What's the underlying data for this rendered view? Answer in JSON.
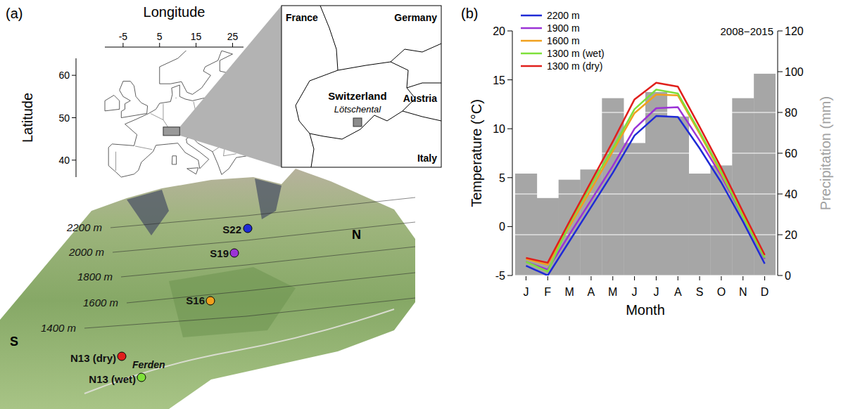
{
  "map": {
    "panel_label": "(a)",
    "x_label": "Longitude",
    "xlim": [
      -10,
      28
    ],
    "xticks": [
      -5,
      5,
      15,
      25
    ],
    "y_label": "Latitude",
    "ylim": [
      36,
      64
    ],
    "yticks": [
      40,
      50,
      60
    ],
    "countries": [
      "France",
      "Germany",
      "Switzerland",
      "Austria",
      "Italy"
    ],
    "valley": "Lötschental",
    "elevations": [
      "2200 m",
      "2000 m",
      "1800 m",
      "1600 m",
      "1400 m"
    ],
    "sites": [
      {
        "label": "S22",
        "color": "#1f2bd6"
      },
      {
        "label": "S19",
        "color": "#9b33d6"
      },
      {
        "label": "S16",
        "color": "#f0a01e"
      },
      {
        "label": "N13 (dry)",
        "color": "#e0201c"
      },
      {
        "label": "N13 (wet)",
        "color": "#7ee03a"
      }
    ],
    "village": "Ferden",
    "directions": [
      "S",
      "N"
    ]
  },
  "chart_data": {
    "type": "line",
    "panel_label": "(b)",
    "x_label": "Month",
    "y_label": "Temperature (°C)",
    "y2_label": "Precipitation (mm)",
    "annotation": "2008−2015",
    "categories": [
      "J",
      "F",
      "M",
      "A",
      "M",
      "J",
      "J",
      "A",
      "S",
      "O",
      "N",
      "D"
    ],
    "ylim": [
      -5,
      20
    ],
    "yticks": [
      -5,
      0,
      5,
      10,
      15,
      20
    ],
    "y2lim": [
      0,
      120
    ],
    "y2ticks": [
      0,
      20,
      40,
      60,
      80,
      100,
      120
    ],
    "grid": true,
    "legend": "top-left",
    "series": [
      {
        "type": "bar",
        "axis": "y2",
        "color": "#a6a6a6",
        "values": [
          50,
          38,
          47,
          52,
          87,
          65,
          90,
          78,
          50,
          54,
          87,
          99
        ]
      },
      {
        "name": "2200 m",
        "type": "line",
        "line_style": "solid",
        "color": "#1f2bd6",
        "values": [
          -4.0,
          -5.0,
          -1.5,
          2.0,
          5.5,
          9.3,
          11.3,
          11.2,
          8.0,
          4.5,
          0.5,
          -3.8
        ]
      },
      {
        "name": "1900 m",
        "type": "line",
        "line_style": "solid",
        "color": "#9b33d6",
        "values": [
          -3.6,
          -4.4,
          -0.8,
          2.7,
          6.2,
          10.0,
          12.1,
          12.2,
          8.8,
          5.2,
          1.0,
          -3.3
        ]
      },
      {
        "name": "1600 m",
        "type": "line",
        "line_style": "solid",
        "color": "#f0a01e",
        "values": [
          -3.3,
          -3.9,
          0.0,
          3.8,
          7.7,
          11.6,
          13.5,
          13.4,
          9.5,
          5.4,
          1.2,
          -3.0
        ]
      },
      {
        "name": "1300 m (wet)",
        "type": "line",
        "line_style": "solid",
        "color": "#7ee03a",
        "values": [
          -3.6,
          -4.6,
          0.3,
          4.3,
          8.0,
          12.0,
          14.0,
          13.6,
          9.7,
          5.6,
          1.0,
          -3.2
        ]
      },
      {
        "name": "1300 m (dry)",
        "type": "line",
        "line_style": "solid",
        "color": "#e0201c",
        "values": [
          -3.2,
          -3.7,
          0.5,
          4.6,
          8.7,
          13.0,
          14.7,
          14.3,
          10.2,
          6.0,
          1.5,
          -2.9
        ]
      }
    ]
  }
}
